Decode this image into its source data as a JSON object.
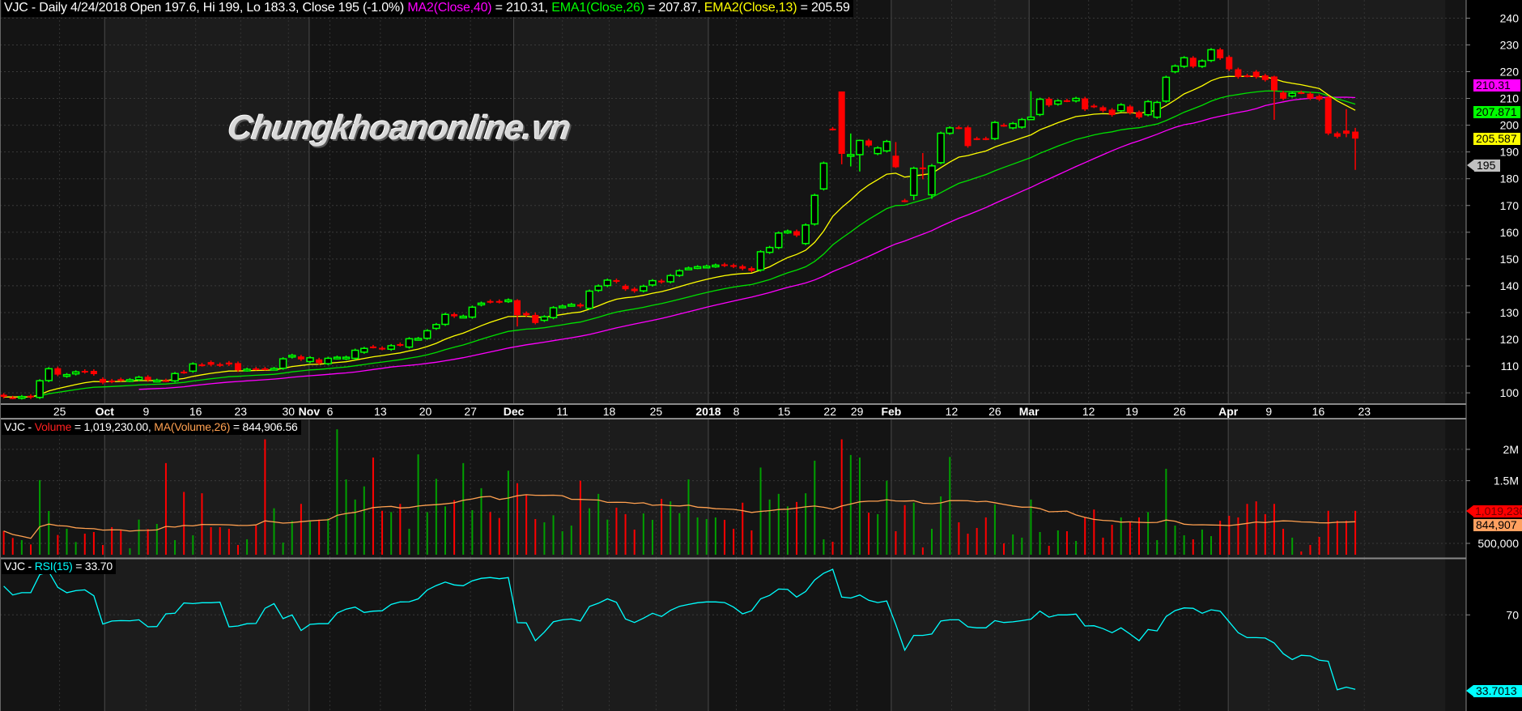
{
  "header": {
    "symbol_info": "VJC - Daily 4/24/2018 Open 197.6, Hi 199, Lo 183.3, Close 195 (-1.0%)",
    "ma2_label": "MA2(Close,40)",
    "ma2_value": " = 210.31,",
    "ema1_label": "EMA1(Close,26)",
    "ema1_value": " = 207.87,",
    "ema2_label": "EMA2(Close,13)",
    "ema2_value": " = 205.59"
  },
  "volume_legend": {
    "prefix": "VJC - ",
    "volume_label": "Volume",
    "volume_value": " = 1,019,230.00, ",
    "ma_label": "MA(Volume,26)",
    "ma_value": " = 844,906.56"
  },
  "rsi_legend": {
    "prefix": "VJC - ",
    "rsi_label": "RSI(15)",
    "rsi_value": " = 33.70"
  },
  "watermark": "Chungkhoanonline.vn",
  "markers": {
    "ma40": "210.31",
    "ema26": "207.871",
    "ema13": "205.587",
    "last_close": "195",
    "volume": "1,019,230",
    "volume_ma": "844,907",
    "rsi": "33.7013"
  },
  "colors": {
    "up": "#00ff00",
    "down": "#ff0000",
    "vol_up": "#00a000",
    "vol_down": "#ff0000",
    "ma40": "#ff00ff",
    "ema26": "#00e000",
    "ema13": "#ffff00",
    "vol_ma": "#ffa050",
    "rsi": "#00ffff"
  },
  "chart_data": {
    "type": "candlestick",
    "title": "VJC - Daily",
    "price_axis": {
      "ticks": [
        240,
        230,
        220,
        210,
        200,
        190,
        180,
        170,
        160,
        150,
        140,
        130,
        120,
        110,
        100
      ],
      "range": [
        95,
        246
      ]
    },
    "volume_axis": {
      "ticks": [
        {
          "label": "2M",
          "value": 2000
        },
        {
          "label": "1.5M",
          "value": 1500
        },
        {
          "label": "500,000",
          "value": 500
        }
      ],
      "unit": "thousand shares"
    },
    "rsi_axis": {
      "ticks": [
        {
          "label": "70",
          "value": 70
        }
      ],
      "range": [
        30,
        97
      ]
    },
    "x_labels": [
      {
        "text": "25",
        "bar": 6.2
      },
      {
        "text": "Oct",
        "bar": 11.2,
        "major": true
      },
      {
        "text": "9",
        "bar": 15.8
      },
      {
        "text": "16",
        "bar": 21.3
      },
      {
        "text": "23",
        "bar": 26.3
      },
      {
        "text": "30",
        "bar": 31.6
      },
      {
        "text": "Nov",
        "bar": 33.9,
        "major": true
      },
      {
        "text": "6",
        "bar": 36.2
      },
      {
        "text": "13",
        "bar": 41.8
      },
      {
        "text": "20",
        "bar": 46.8
      },
      {
        "text": "27",
        "bar": 51.8
      },
      {
        "text": "Dec",
        "bar": 56.6,
        "major": true
      },
      {
        "text": "11",
        "bar": 62
      },
      {
        "text": "18",
        "bar": 67.2
      },
      {
        "text": "25",
        "bar": 72.4
      },
      {
        "text": "2018",
        "bar": 78.2,
        "major": true
      },
      {
        "text": "8",
        "bar": 81.3
      },
      {
        "text": "15",
        "bar": 86.6
      },
      {
        "text": "22",
        "bar": 91.7
      },
      {
        "text": "29",
        "bar": 94.7
      },
      {
        "text": "Feb",
        "bar": 98.5,
        "major": true
      },
      {
        "text": "12",
        "bar": 105.2
      },
      {
        "text": "26",
        "bar": 110
      },
      {
        "text": "Mar",
        "bar": 113.8,
        "major": true
      },
      {
        "text": "12",
        "bar": 120.4
      },
      {
        "text": "19",
        "bar": 125.2
      },
      {
        "text": "26",
        "bar": 130.5
      },
      {
        "text": "Apr",
        "bar": 135.9,
        "major": true
      },
      {
        "text": "9",
        "bar": 140.4
      },
      {
        "text": "16",
        "bar": 145.9
      },
      {
        "text": "23",
        "bar": 151
      }
    ],
    "open": [
      99.3,
      98.3,
      98.1,
      98.9,
      98.3,
      104.6,
      109.2,
      106.2,
      107.1,
      108.2,
      108.2,
      105.2,
      104.6,
      105.1,
      104.6,
      104.9,
      106,
      104.5,
      104.7,
      104.5,
      107.9,
      108.1,
      110.6,
      111.5,
      110.7,
      111.3,
      111.1,
      108.5,
      109.1,
      109.1,
      109,
      109.2,
      113.4,
      113.6,
      111.7,
      112.5,
      110.9,
      113.1,
      112.8,
      112.9,
      115.2,
      117.3,
      116.8,
      116.3,
      118.2,
      117.1,
      120.1,
      120.4,
      124.1,
      125.6,
      129.4,
      128.5,
      128.3,
      132.9,
      134.3,
      134.3,
      134.2,
      134.6,
      129.8,
      129.1,
      127.1,
      128.1,
      132.2,
      132.8,
      133,
      131.6,
      138.3,
      140.1,
      142.1,
      140,
      138.9,
      138.1,
      140.3,
      141.9,
      141.5,
      143.9,
      146.5,
      146.8,
      147.1,
      147.3,
      148,
      147.7,
      147.3,
      146.6,
      145.9,
      152.5,
      154.3,
      160,
      160.4,
      155.8,
      163.1,
      176.2,
      198.7,
      212.6,
      188.7,
      189,
      194.3,
      189.4,
      190.4,
      188.6,
      171.9,
      173.8,
      184.2,
      174,
      186,
      197,
      199.2,
      199.2,
      195.1,
      195.1,
      195,
      200.1,
      199,
      199.3,
      202.1,
      204,
      209.9,
      207.9,
      209.3,
      209.1,
      210,
      207.3,
      206.7,
      205.8,
      205.4,
      207,
      204.9,
      203.9,
      203,
      209,
      220,
      222,
      225.2,
      222,
      224.2,
      228.3,
      225.5,
      220.9,
      218.6,
      220,
      218.6,
      218.2,
      212.2,
      210.9,
      212.3,
      211.8,
      210.9,
      210.4,
      197,
      198,
      197.6
    ],
    "close": [
      98.5,
      98.2,
      98.6,
      98.3,
      104.5,
      109,
      106.8,
      106.8,
      107.8,
      107.8,
      107,
      103.8,
      104.2,
      104.8,
      104.9,
      105.8,
      104.7,
      104.7,
      104.6,
      107.2,
      107.7,
      110.8,
      110.4,
      110.5,
      110.3,
      110.6,
      108.4,
      108.8,
      109,
      109,
      109.1,
      112.7,
      114,
      112.5,
      113.1,
      111.1,
      112.9,
      113.3,
      113.3,
      115.9,
      116.6,
      117.2,
      116.5,
      117.6,
      117.9,
      120.2,
      120.3,
      123.2,
      125.5,
      129.3,
      128.6,
      128.6,
      132,
      133.5,
      134,
      134,
      134.7,
      129,
      129,
      126.1,
      128.4,
      131.8,
      132.4,
      133,
      132.3,
      138,
      139.9,
      142.1,
      141.5,
      138.7,
      138,
      139.8,
      141.9,
      141.4,
      143.8,
      145.6,
      146.6,
      147.1,
      147.3,
      147.7,
      147.6,
      147.2,
      146.4,
      145.6,
      152.7,
      154.3,
      159.7,
      160.4,
      158.8,
      162.7,
      173.8,
      185.8,
      198.6,
      189.3,
      189,
      194.3,
      192.4,
      191.5,
      193.9,
      184.3,
      171.8,
      183.9,
      184,
      184.8,
      197,
      199,
      199.1,
      192.2,
      195,
      195,
      201,
      200,
      200.6,
      202.1,
      203,
      209.7,
      207.4,
      209.1,
      209.2,
      210,
      205.9,
      207,
      205.4,
      203.8,
      207.6,
      204.6,
      202.9,
      208.8,
      208.5,
      217.9,
      222.1,
      225.2,
      221.9,
      224,
      228.2,
      225,
      220.9,
      218,
      218.5,
      218,
      216.9,
      213,
      209.9,
      211.9,
      212.2,
      210,
      209.6,
      196.9,
      195.7,
      196.8,
      195
    ],
    "wick_overrides": {
      "93": [
        212.6,
        185.4
      ],
      "94": [
        196.9,
        184.6
      ],
      "95": [
        194.6,
        182.7
      ],
      "99": [
        193.7,
        184
      ],
      "101": [
        184.5,
        172
      ],
      "102": [
        189.6,
        179.8
      ],
      "103": [
        185.5,
        172.5
      ],
      "114": [
        212.7,
        202
      ],
      "141": [
        218.5,
        202
      ],
      "149": [
        206,
        195.5
      ],
      "150": [
        199,
        183.3
      ],
      "57": [
        135,
        124.8
      ],
      "59": [
        130,
        125.6
      ]
    },
    "volume_k": [
      698,
      586,
      552,
      483,
      1510,
      1017,
      634,
      733,
      521,
      655,
      681,
      474,
      759,
      707,
      422,
      879,
      728,
      810,
      1780,
      552,
      1320,
      629,
      1300,
      759,
      759,
      733,
      474,
      565,
      784,
      2160,
      1060,
      513,
      858,
      1130,
      849,
      879,
      897,
      2320,
      1520,
      1200,
      1410,
      1870,
      1020,
      1000,
      1130,
      733,
      1920,
      1000,
      1530,
      1090,
      1190,
      1780,
      1030,
      1380,
      1000,
      905,
      1660,
      1460,
      1280,
      888,
      836,
      948,
      694,
      784,
      1500,
      1060,
      1290,
      879,
      1070,
      966,
      720,
      978,
      875,
      1210,
      1170,
      983,
      1520,
      914,
      888,
      914,
      875,
      733,
      1150,
      707,
      1710,
      1200,
      1290,
      1090,
      1160,
      1300,
      1820,
      565,
      526,
      2160,
      1910,
      1870,
      991,
      966,
      1500,
      694,
      1110,
      1150,
      435,
      733,
      1250,
      1880,
      836,
      655,
      746,
      914,
      1120,
      500,
      642,
      591,
      1200,
      681,
      461,
      707,
      694,
      539,
      914,
      1040,
      591,
      797,
      914,
      836,
      914,
      1000,
      552,
      1690,
      784,
      629,
      565,
      720,
      616,
      862,
      940,
      914,
      1130,
      1170,
      966,
      1130,
      733,
      591,
      371,
      474,
      603,
      1020,
      862,
      862,
      1019.23
    ],
    "rsi": [
      84,
      79.7,
      80.8,
      80.8,
      89.6,
      91,
      83.4,
      80.8,
      81.8,
      82.2,
      79.3,
      65.5,
      67,
      67.2,
      67.1,
      67.6,
      64.2,
      64.3,
      70.5,
      70.8,
      75.8,
      75.5,
      75.9,
      75.9,
      76.2,
      64.2,
      64.6,
      65.7,
      65.8,
      73.2,
      75.5,
      68.2,
      70,
      62.4,
      65.4,
      65.7,
      65.7,
      70.9,
      72.8,
      73.8,
      71.2,
      71.8,
      72,
      75.1,
      76.3,
      76.4,
      77.8,
      82.1,
      84.3,
      86,
      84.6,
      84.2,
      86.6,
      87.8,
      88.2,
      87.6,
      88.2,
      66.2,
      66.1,
      57.4,
      61.6,
      66.6,
      67.6,
      68,
      67,
      74.1,
      75.7,
      77.8,
      76.1,
      68,
      66.3,
      68.4,
      70.8,
      69.2,
      72.2,
      74.2,
      75.1,
      75.9,
      76.3,
      76.3,
      76,
      73.8,
      70.5,
      72,
      77.8,
      79.5,
      82.6,
      82.4,
      78.7,
      81.4,
      87,
      90.3,
      92.2,
      78.7,
      78.2,
      79.7,
      77.1,
      76,
      76.8,
      65.3,
      52.8,
      60,
      60,
      60.7,
      67,
      67.6,
      67.6,
      64.2,
      63.7,
      63.7,
      67.2,
      66.3,
      66.6,
      67.2,
      67.9,
      71.8,
      68.9,
      70,
      70,
      70.4,
      64.6,
      64.7,
      63.3,
      61.3,
      63.7,
      60.7,
      57.4,
      62.9,
      62.2,
      69.2,
      72.1,
      73.4,
      73.2,
      70.8,
      72.5,
      71.8,
      66.6,
      61.3,
      58.9,
      58.9,
      58.7,
      56.3,
      51.1,
      48.2,
      50.3,
      50,
      47.9,
      47.4,
      33.5,
      34.8,
      33.7
    ],
    "indicators": {
      "ma_period": 40,
      "ema_slow": 26,
      "ema_fast": 13,
      "vol_ma_period": 26,
      "rsi_period": 15
    }
  }
}
